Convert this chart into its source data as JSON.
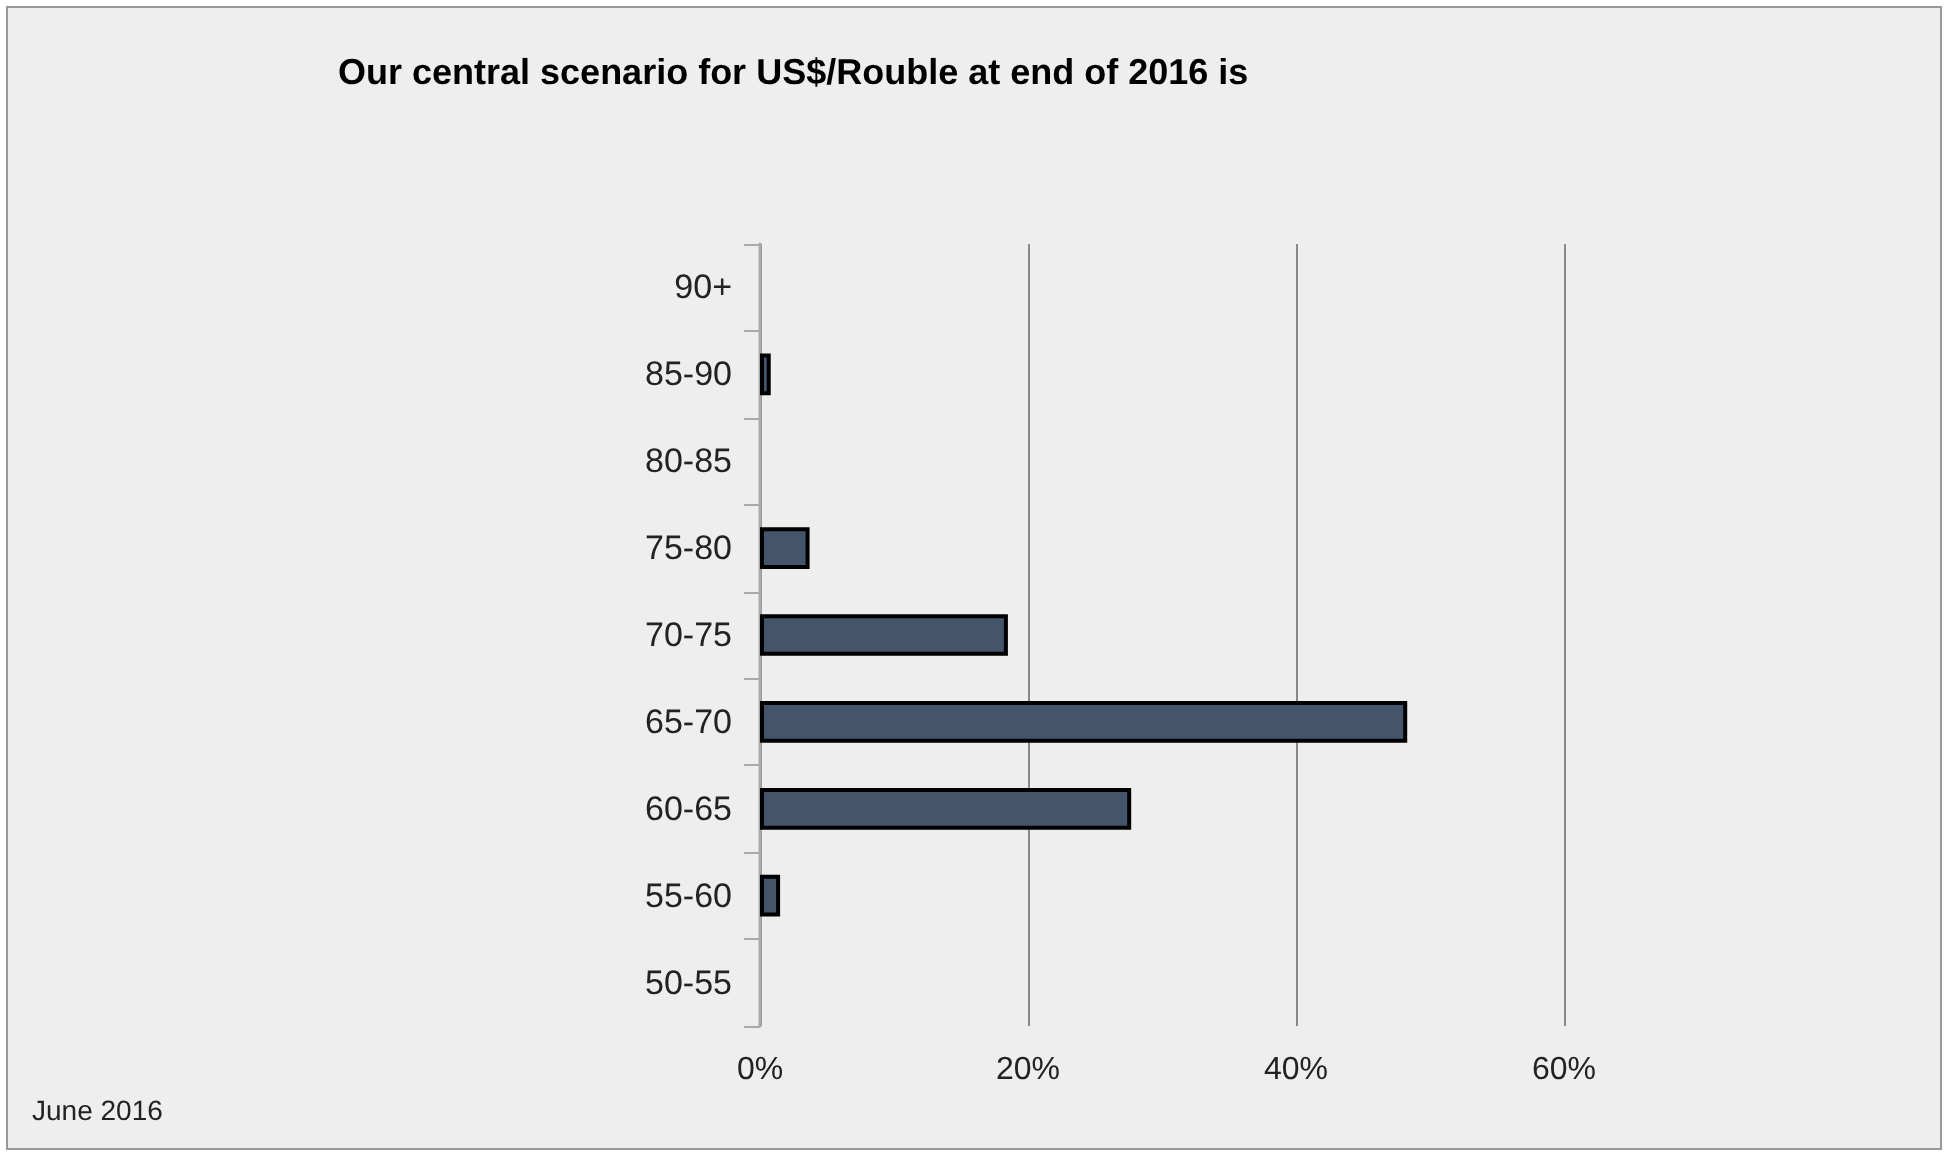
{
  "chart_data": {
    "type": "bar",
    "orientation": "horizontal",
    "title": "Our central scenario for US$/Rouble at end of 2016 is",
    "categories": [
      "90+",
      "85-90",
      "80-85",
      "75-80",
      "70-75",
      "65-70",
      "60-65",
      "55-60",
      "50-55"
    ],
    "values": [
      0,
      0.8,
      0,
      3.7,
      18.5,
      48.3,
      27.7,
      1.5,
      0
    ],
    "color": "#44546a",
    "xlim": [
      0,
      60
    ],
    "xticks": [
      {
        "value": 0,
        "label": "0%"
      },
      {
        "value": 20,
        "label": "20%"
      },
      {
        "value": 40,
        "label": "40%"
      },
      {
        "value": 60,
        "label": "60%"
      }
    ],
    "grid": "x",
    "annotations": [
      "June 2016"
    ]
  }
}
